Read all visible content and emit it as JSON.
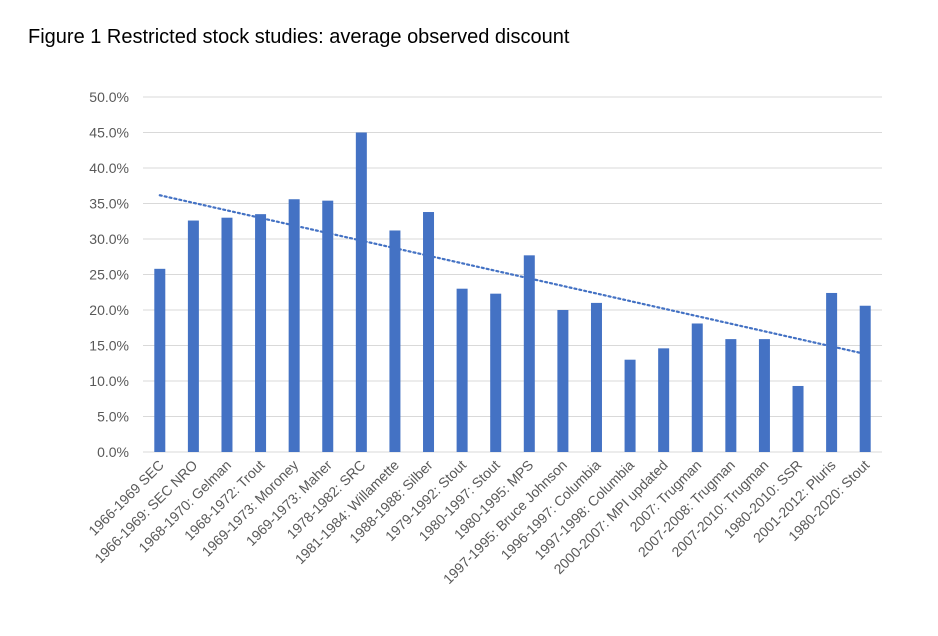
{
  "title": "Figure 1 Restricted stock studies: average observed discount",
  "chart_data": {
    "type": "bar",
    "title": "Figure 1 Restricted stock studies: average observed discount",
    "xlabel": "",
    "ylabel": "",
    "ylim": [
      0,
      50
    ],
    "yticks": [
      "0.0%",
      "5.0%",
      "10.0%",
      "15.0%",
      "20.0%",
      "25.0%",
      "30.0%",
      "35.0%",
      "40.0%",
      "45.0%",
      "50.0%"
    ],
    "grid": true,
    "legend": "none",
    "bar_color": "#4472C4",
    "trendline": {
      "type": "linear",
      "style": "dotted",
      "color": "#4472C4"
    },
    "categories": [
      "1966-1969 SEC",
      "1966-1969: SEC NRO",
      "1968-1970: Gelman",
      "1968-1972: Trout",
      "1969-1973: Moroney",
      "1969-1973: Maher",
      "1978-1982: SRC",
      "1981-1984: Willamette",
      "1988-1988: Silber",
      "1979-1992: Stout",
      "1980-1997: Stout",
      "1980-1995: MPS",
      "1997-1995: Bruce Johnson",
      "1996-1997: Columbia",
      "1997-1998: Columbia",
      "2000-2007: MPI updated",
      "2007: Trugman",
      "2007-2008: Trugman",
      "2007-2010: Trugman",
      "1980-2010: SSR",
      "2001-2012: Pluris",
      "1980-2020: Stout"
    ],
    "values": [
      25.8,
      32.6,
      33.0,
      33.5,
      35.6,
      35.4,
      45.0,
      31.2,
      33.8,
      23.0,
      22.3,
      27.7,
      20.0,
      21.0,
      13.0,
      14.6,
      18.1,
      15.9,
      15.9,
      9.3,
      22.4,
      20.6
    ]
  }
}
